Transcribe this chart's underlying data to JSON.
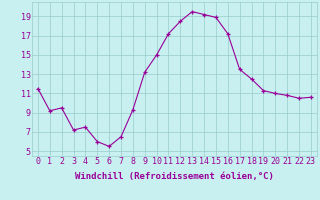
{
  "x": [
    0,
    1,
    2,
    3,
    4,
    5,
    6,
    7,
    8,
    9,
    10,
    11,
    12,
    13,
    14,
    15,
    16,
    17,
    18,
    19,
    20,
    21,
    22,
    23
  ],
  "y": [
    11.5,
    9.2,
    9.5,
    7.2,
    7.5,
    6.0,
    5.5,
    6.5,
    9.3,
    13.2,
    15.0,
    17.2,
    18.5,
    19.5,
    19.2,
    18.9,
    17.2,
    13.5,
    12.5,
    11.3,
    11.0,
    10.8,
    10.5,
    10.6
  ],
  "line_color": "#990099",
  "marker": "+",
  "background_color": "#c8f0f0",
  "grid_color": "#99cccc",
  "xlabel": "Windchill (Refroidissement éolien,°C)",
  "xlabel_fontsize": 6.5,
  "tick_fontsize": 6.0,
  "xlim": [
    -0.5,
    23.5
  ],
  "ylim": [
    4.5,
    20.5
  ],
  "yticks": [
    5,
    7,
    9,
    11,
    13,
    15,
    17,
    19
  ],
  "xticks": [
    0,
    1,
    2,
    3,
    4,
    5,
    6,
    7,
    8,
    9,
    10,
    11,
    12,
    13,
    14,
    15,
    16,
    17,
    18,
    19,
    20,
    21,
    22,
    23
  ],
  "xtick_labels": [
    "0",
    "1",
    "2",
    "3",
    "4",
    "5",
    "6",
    "7",
    "8",
    "9",
    "10",
    "11",
    "12",
    "13",
    "14",
    "15",
    "16",
    "17",
    "18",
    "19",
    "20",
    "21",
    "22",
    "23"
  ]
}
